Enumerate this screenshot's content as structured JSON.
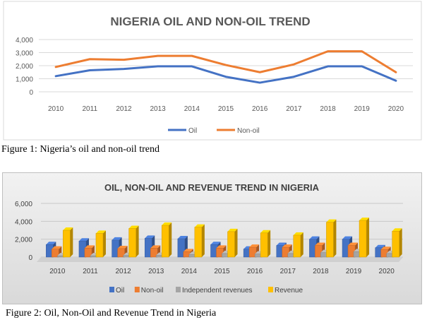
{
  "figure1": {
    "caption": "Figure 1: Nigeria’s oil and non-oil trend",
    "chart_data": {
      "type": "line",
      "title": "NIGERIA OIL AND NON-OIL TREND",
      "categories": [
        "2010",
        "2011",
        "2012",
        "2013",
        "2014",
        "2015",
        "2016",
        "2017",
        "2018",
        "2019",
        "2020"
      ],
      "series": [
        {
          "name": "Oil",
          "color": "#4472c4",
          "values": [
            1200,
            1650,
            1750,
            1950,
            1950,
            1150,
            700,
            1150,
            1950,
            1950,
            850
          ]
        },
        {
          "name": "Non-oil",
          "color": "#ed7d31",
          "values": [
            1900,
            2500,
            2450,
            2750,
            2750,
            2050,
            1500,
            2100,
            3100,
            3100,
            1500
          ]
        }
      ],
      "yticks": [
        "4,000",
        "3,000",
        "2,000",
        "1,000",
        "0"
      ],
      "ylim": [
        0,
        4000
      ],
      "grid": true,
      "legend_position": "bottom"
    }
  },
  "figure2": {
    "caption": "Figure 2: Oil, Non-Oil and Revenue Trend in Nigeria",
    "chart_data": {
      "type": "bar",
      "title": "OIL, NON-OIL AND REVENUE TREND IN NIGERIA",
      "categories": [
        "2010",
        "2011",
        "2012",
        "2013",
        "2014",
        "2015",
        "2016",
        "2017",
        "2018",
        "2019",
        "2020"
      ],
      "series": [
        {
          "name": "Oil",
          "color": "#4472c4",
          "values": [
            1400,
            1800,
            1900,
            2100,
            2050,
            1400,
            900,
            1300,
            2000,
            2000,
            1050
          ]
        },
        {
          "name": "Non-oil",
          "color": "#ed7d31",
          "values": [
            900,
            1000,
            950,
            1000,
            600,
            1000,
            1100,
            1100,
            1300,
            1300,
            850
          ]
        },
        {
          "name": "Independent revenues",
          "color": "#a5a5a5",
          "values": [
            150,
            150,
            180,
            200,
            300,
            400,
            350,
            400,
            500,
            600,
            400
          ]
        },
        {
          "name": "Revenue",
          "color": "#ffc000",
          "values": [
            3000,
            2650,
            3200,
            3550,
            3350,
            2850,
            2700,
            2450,
            3900,
            4100,
            2900
          ]
        }
      ],
      "yticks": [
        "6,000",
        "4,000",
        "2,000",
        "0"
      ],
      "ylim": [
        0,
        6000
      ],
      "grid": true,
      "legend_position": "bottom"
    }
  }
}
